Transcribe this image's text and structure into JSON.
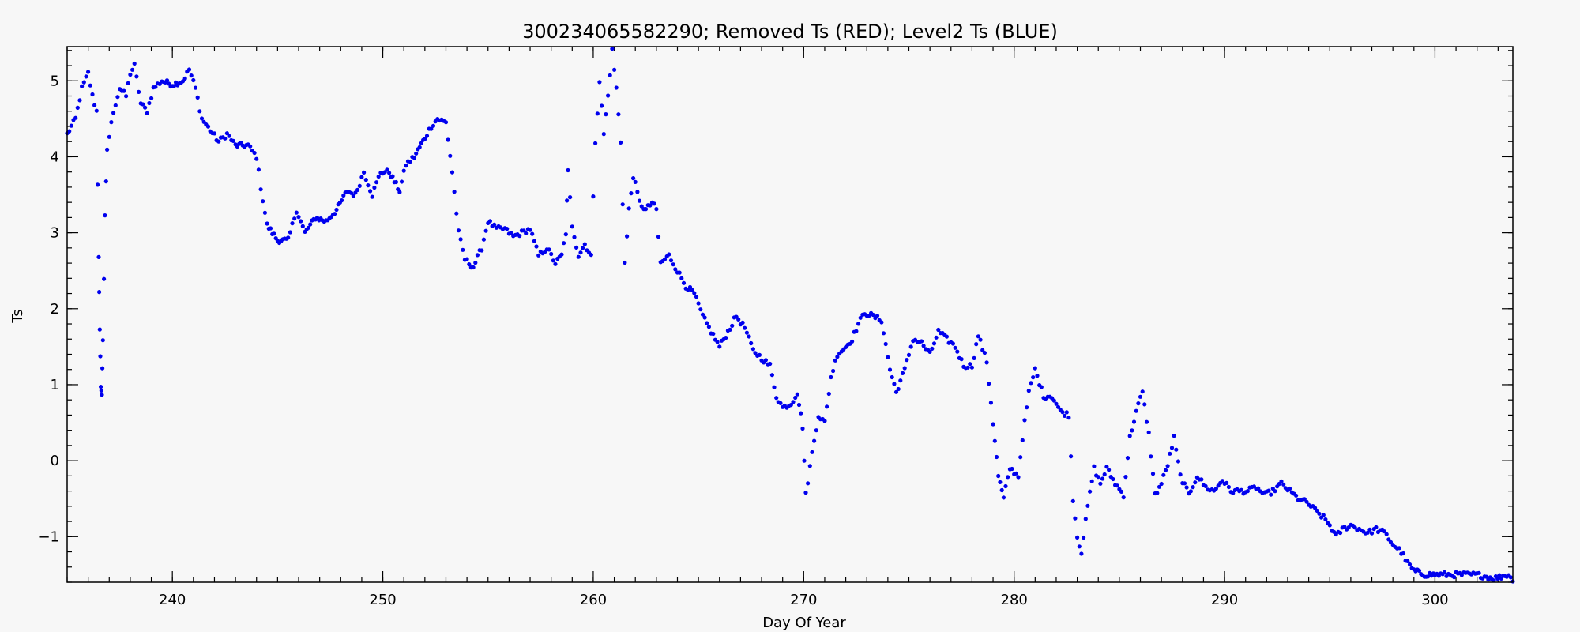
{
  "chart_data": {
    "type": "scatter",
    "title": "300234065582290; Removed Ts (RED); Level2 Ts (BLUE)",
    "xlabel": "Day Of Year",
    "ylabel": "Ts",
    "xlim": [
      235,
      303.7
    ],
    "ylim": [
      -1.6,
      5.45
    ],
    "x_ticks": [
      240,
      250,
      260,
      270,
      280,
      290,
      300
    ],
    "y_ticks": [
      -1,
      0,
      1,
      2,
      3,
      4,
      5
    ],
    "x_minor_step": 1,
    "y_minor_step": 0.2,
    "grid": false,
    "colors": {
      "level2": "#0000ee",
      "removed": "#ee0000",
      "frame": "#000000",
      "background": "#f7f7f7"
    },
    "series": [
      {
        "name": "Level2 Ts (BLUE)",
        "color": "#0000ee",
        "anchors": [
          [
            235.0,
            4.3
          ],
          [
            235.4,
            4.5
          ],
          [
            235.7,
            4.9
          ],
          [
            236.0,
            5.1
          ],
          [
            236.2,
            4.8
          ],
          [
            236.4,
            4.6
          ],
          [
            236.5,
            2.7
          ],
          [
            236.55,
            1.7
          ],
          [
            236.6,
            1.0
          ],
          [
            236.65,
            0.85
          ],
          [
            236.7,
            1.6
          ],
          [
            236.8,
            3.2
          ],
          [
            236.9,
            4.1
          ],
          [
            237.2,
            4.6
          ],
          [
            237.5,
            4.9
          ],
          [
            237.8,
            4.8
          ],
          [
            238.0,
            5.1
          ],
          [
            238.2,
            5.2
          ],
          [
            238.5,
            4.7
          ],
          [
            238.8,
            4.6
          ],
          [
            239.1,
            4.9
          ],
          [
            239.5,
            5.0
          ],
          [
            240.0,
            4.95
          ],
          [
            240.5,
            5.0
          ],
          [
            240.8,
            5.15
          ],
          [
            241.1,
            4.9
          ],
          [
            241.4,
            4.5
          ],
          [
            241.8,
            4.35
          ],
          [
            242.2,
            4.2
          ],
          [
            242.6,
            4.3
          ],
          [
            243.0,
            4.15
          ],
          [
            243.6,
            4.15
          ],
          [
            244.0,
            4.0
          ],
          [
            244.2,
            3.6
          ],
          [
            244.5,
            3.1
          ],
          [
            245.0,
            2.9
          ],
          [
            245.5,
            2.9
          ],
          [
            245.9,
            3.3
          ],
          [
            246.3,
            3.0
          ],
          [
            246.8,
            3.2
          ],
          [
            247.3,
            3.15
          ],
          [
            247.8,
            3.3
          ],
          [
            248.3,
            3.55
          ],
          [
            248.7,
            3.5
          ],
          [
            249.1,
            3.8
          ],
          [
            249.5,
            3.5
          ],
          [
            249.9,
            3.8
          ],
          [
            250.3,
            3.8
          ],
          [
            250.8,
            3.55
          ],
          [
            251.1,
            3.9
          ],
          [
            251.5,
            4.0
          ],
          [
            252.0,
            4.25
          ],
          [
            252.3,
            4.4
          ],
          [
            252.6,
            4.5
          ],
          [
            253.0,
            4.45
          ],
          [
            253.3,
            3.8
          ],
          [
            253.6,
            3.0
          ],
          [
            253.9,
            2.65
          ],
          [
            254.3,
            2.55
          ],
          [
            254.7,
            2.8
          ],
          [
            255.0,
            3.15
          ],
          [
            255.4,
            3.05
          ],
          [
            255.8,
            3.05
          ],
          [
            256.2,
            2.95
          ],
          [
            256.6,
            3.0
          ],
          [
            257.0,
            3.05
          ],
          [
            257.4,
            2.7
          ],
          [
            257.8,
            2.8
          ],
          [
            258.2,
            2.6
          ],
          [
            258.5,
            2.7
          ],
          [
            258.7,
            3.0
          ],
          [
            258.8,
            3.8
          ],
          [
            259.0,
            3.1
          ],
          [
            259.3,
            2.7
          ],
          [
            259.6,
            2.85
          ],
          [
            259.9,
            2.7
          ],
          [
            260.1,
            4.2
          ],
          [
            260.3,
            5.0
          ],
          [
            260.5,
            4.3
          ],
          [
            260.7,
            4.8
          ],
          [
            260.9,
            5.4
          ],
          [
            261.1,
            4.9
          ],
          [
            261.3,
            4.2
          ],
          [
            261.5,
            2.6
          ],
          [
            261.7,
            3.3
          ],
          [
            261.9,
            3.75
          ],
          [
            262.2,
            3.4
          ],
          [
            262.5,
            3.3
          ],
          [
            262.8,
            3.4
          ],
          [
            263.0,
            3.3
          ],
          [
            263.2,
            2.6
          ],
          [
            263.6,
            2.7
          ],
          [
            264.0,
            2.5
          ],
          [
            264.4,
            2.3
          ],
          [
            264.8,
            2.2
          ],
          [
            265.2,
            1.9
          ],
          [
            265.6,
            1.7
          ],
          [
            266.0,
            1.5
          ],
          [
            266.4,
            1.7
          ],
          [
            266.8,
            1.9
          ],
          [
            267.2,
            1.75
          ],
          [
            267.6,
            1.45
          ],
          [
            268.0,
            1.35
          ],
          [
            268.4,
            1.25
          ],
          [
            268.7,
            0.85
          ],
          [
            269.0,
            0.7
          ],
          [
            269.4,
            0.75
          ],
          [
            269.7,
            0.9
          ],
          [
            269.95,
            0.45
          ],
          [
            270.1,
            -0.45
          ],
          [
            270.4,
            0.1
          ],
          [
            270.7,
            0.6
          ],
          [
            271.0,
            0.5
          ],
          [
            271.3,
            1.1
          ],
          [
            271.6,
            1.4
          ],
          [
            272.0,
            1.5
          ],
          [
            272.3,
            1.6
          ],
          [
            272.6,
            1.8
          ],
          [
            272.9,
            1.95
          ],
          [
            273.3,
            1.9
          ],
          [
            273.7,
            1.85
          ],
          [
            274.1,
            1.2
          ],
          [
            274.4,
            0.9
          ],
          [
            274.8,
            1.2
          ],
          [
            275.2,
            1.6
          ],
          [
            275.6,
            1.55
          ],
          [
            276.0,
            1.4
          ],
          [
            276.4,
            1.7
          ],
          [
            276.8,
            1.6
          ],
          [
            277.2,
            1.5
          ],
          [
            277.6,
            1.25
          ],
          [
            278.0,
            1.25
          ],
          [
            278.3,
            1.65
          ],
          [
            278.7,
            1.3
          ],
          [
            279.0,
            0.5
          ],
          [
            279.25,
            -0.2
          ],
          [
            279.5,
            -0.5
          ],
          [
            279.8,
            -0.1
          ],
          [
            280.2,
            -0.2
          ],
          [
            280.4,
            0.3
          ],
          [
            280.7,
            0.9
          ],
          [
            281.0,
            1.2
          ],
          [
            281.4,
            0.85
          ],
          [
            281.8,
            0.85
          ],
          [
            282.2,
            0.65
          ],
          [
            282.6,
            0.6
          ],
          [
            282.8,
            -0.5
          ],
          [
            283.0,
            -1.0
          ],
          [
            283.2,
            -1.2
          ],
          [
            283.5,
            -0.6
          ],
          [
            283.8,
            -0.1
          ],
          [
            284.1,
            -0.3
          ],
          [
            284.4,
            -0.1
          ],
          [
            284.8,
            -0.3
          ],
          [
            285.2,
            -0.45
          ],
          [
            285.5,
            0.3
          ],
          [
            285.8,
            0.65
          ],
          [
            286.1,
            0.9
          ],
          [
            286.4,
            0.35
          ],
          [
            286.7,
            -0.45
          ],
          [
            287.0,
            -0.3
          ],
          [
            287.3,
            -0.05
          ],
          [
            287.6,
            0.3
          ],
          [
            287.9,
            -0.2
          ],
          [
            288.3,
            -0.45
          ],
          [
            288.7,
            -0.2
          ],
          [
            289.1,
            -0.35
          ],
          [
            289.5,
            -0.4
          ],
          [
            289.9,
            -0.25
          ],
          [
            290.3,
            -0.4
          ],
          [
            290.7,
            -0.4
          ],
          [
            291.1,
            -0.4
          ],
          [
            291.5,
            -0.35
          ],
          [
            291.9,
            -0.45
          ],
          [
            292.3,
            -0.4
          ],
          [
            292.7,
            -0.3
          ],
          [
            293.1,
            -0.4
          ],
          [
            293.5,
            -0.5
          ],
          [
            293.9,
            -0.55
          ],
          [
            294.3,
            -0.65
          ],
          [
            294.7,
            -0.75
          ],
          [
            295.0,
            -0.85
          ],
          [
            295.3,
            -1.0
          ],
          [
            295.6,
            -0.9
          ],
          [
            296.0,
            -0.85
          ],
          [
            296.4,
            -0.9
          ],
          [
            296.8,
            -0.95
          ],
          [
            297.2,
            -0.9
          ],
          [
            297.6,
            -0.95
          ],
          [
            298.0,
            -1.1
          ],
          [
            298.4,
            -1.2
          ],
          [
            298.7,
            -1.35
          ],
          [
            299.0,
            -1.45
          ],
          [
            299.5,
            -1.5
          ],
          [
            300.0,
            -1.5
          ],
          [
            301.0,
            -1.5
          ],
          [
            302.0,
            -1.5
          ],
          [
            302.8,
            -1.55
          ],
          [
            303.5,
            -1.5
          ],
          [
            303.7,
            -1.6
          ]
        ]
      },
      {
        "name": "Removed Ts (RED)",
        "color": "#ee0000",
        "anchors": []
      }
    ]
  }
}
